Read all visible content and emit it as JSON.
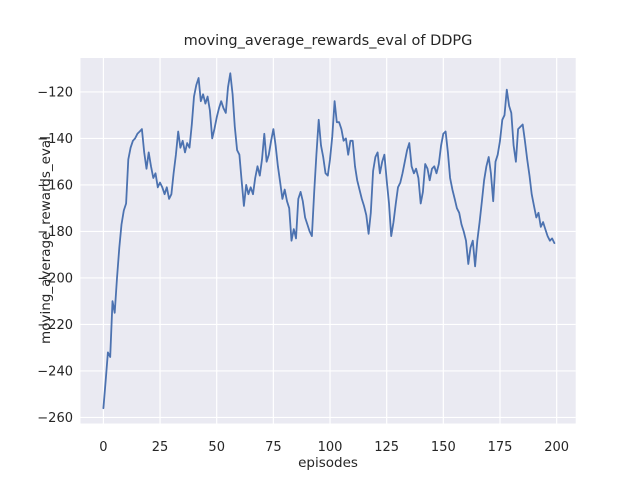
{
  "chart_data": {
    "type": "line",
    "title": "moving_average_rewards_eval of DDPG",
    "xlabel": "episodes",
    "ylabel": "moving_average_rewards_eval",
    "x_ticks": [
      0,
      25,
      50,
      75,
      100,
      125,
      150,
      175,
      200
    ],
    "y_ticks": [
      -120,
      -140,
      -160,
      -180,
      -200,
      -220,
      -240,
      -260
    ],
    "xlim": [
      -10.1,
      208.4
    ],
    "ylim": [
      -262.6,
      -105.4
    ],
    "grid": true,
    "legend_position": "none",
    "style": {
      "fig_bg": "#ffffff",
      "axes_bg": "#eaeaf2",
      "grid_color": "#ffffff",
      "text_color": "#262626",
      "line_color": "#4c72b0"
    },
    "series": [
      {
        "name": "moving_average_rewards_eval",
        "color": "#4c72b0",
        "x_start": 0,
        "x_step": 1,
        "values": [
          -256,
          -244,
          -232,
          -234,
          -210,
          -215,
          -200,
          -187,
          -177,
          -171,
          -168,
          -149,
          -144,
          -141,
          -140,
          -138,
          -137,
          -136,
          -146,
          -153,
          -146,
          -152,
          -157,
          -155,
          -161,
          -159,
          -161,
          -164,
          -161,
          -166,
          -164,
          -155,
          -147,
          -137,
          -144,
          -141,
          -146,
          -142,
          -144,
          -134,
          -122,
          -117,
          -114,
          -124,
          -121,
          -125,
          -122,
          -128,
          -140,
          -136,
          -131,
          -127,
          -124,
          -127,
          -129,
          -118,
          -112,
          -121,
          -135,
          -145,
          -147,
          -158,
          -169,
          -160,
          -164,
          -161,
          -164,
          -157,
          -152,
          -156,
          -149,
          -138,
          -150,
          -147,
          -141,
          -136,
          -143,
          -152,
          -159,
          -166,
          -162,
          -167,
          -170,
          -184,
          -179,
          -183,
          -166,
          -163,
          -167,
          -174,
          -177,
          -180,
          -182,
          -163,
          -147,
          -132,
          -143,
          -148,
          -155,
          -156,
          -149,
          -139,
          -124,
          -133,
          -133,
          -136,
          -141,
          -140,
          -147,
          -141,
          -141,
          -152,
          -158,
          -162,
          -166,
          -169,
          -173,
          -181,
          -172,
          -154,
          -148,
          -146,
          -155,
          -150,
          -147,
          -158,
          -168,
          -182,
          -176,
          -168,
          -161,
          -159,
          -155,
          -150,
          -145,
          -142,
          -152,
          -155,
          -153,
          -157,
          -168,
          -163,
          -151,
          -153,
          -158,
          -153,
          -152,
          -155,
          -151,
          -143,
          -138,
          -137,
          -146,
          -157,
          -162,
          -166,
          -170,
          -172,
          -177,
          -180,
          -184,
          -194,
          -187,
          -184,
          -195,
          -184,
          -176,
          -167,
          -158,
          -152,
          -148,
          -155,
          -167,
          -150,
          -147,
          -141,
          -132,
          -130,
          -119,
          -126,
          -129,
          -143,
          -150,
          -136,
          -135,
          -134,
          -141,
          -149,
          -156,
          -164,
          -169,
          -174,
          -172,
          -178,
          -176,
          -179,
          -182,
          -184,
          -183,
          -185
        ]
      }
    ]
  }
}
